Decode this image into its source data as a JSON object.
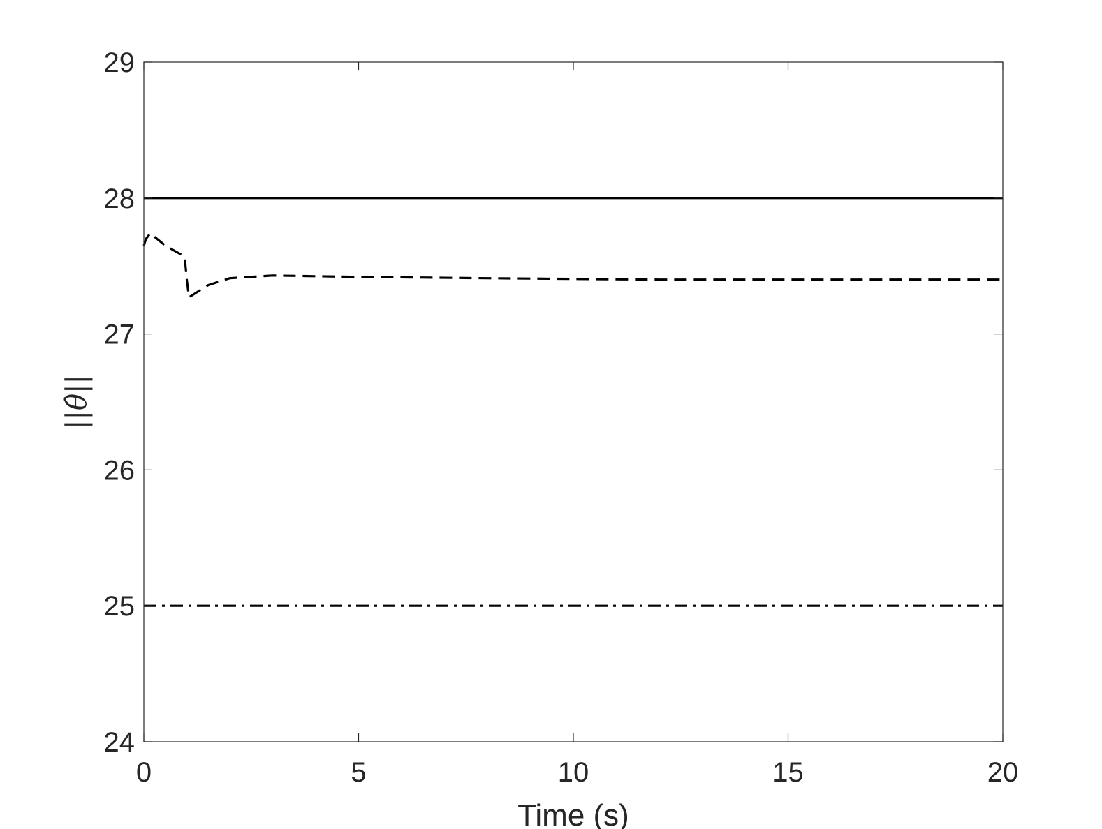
{
  "chart_data": {
    "type": "line",
    "title": "",
    "xlabel": "Time (s)",
    "ylabel": "||θ̂||",
    "xlim": [
      0,
      20
    ],
    "ylim": [
      24,
      29
    ],
    "xticks": [
      "0",
      "5",
      "10",
      "15",
      "20"
    ],
    "yticks": [
      "24",
      "25",
      "26",
      "27",
      "28",
      "29"
    ],
    "grid": false,
    "colors": {
      "axis": "#262626",
      "line": "#000000"
    },
    "series": [
      {
        "style": "solid",
        "x": [
          0,
          20
        ],
        "y": [
          28.0,
          28.0
        ]
      },
      {
        "style": "dashed",
        "x": [
          0,
          0.05,
          0.15,
          0.5,
          0.95,
          1.0,
          1.05,
          1.2,
          1.5,
          2.0,
          3.0,
          5.0,
          8.0,
          12.0,
          16.0,
          20.0
        ],
        "y": [
          27.65,
          27.7,
          27.74,
          27.65,
          27.57,
          27.4,
          27.27,
          27.3,
          27.36,
          27.41,
          27.43,
          27.42,
          27.41,
          27.4,
          27.4,
          27.4
        ]
      },
      {
        "style": "dashdot",
        "x": [
          0,
          20
        ],
        "y": [
          25.0,
          25.0
        ]
      }
    ]
  }
}
